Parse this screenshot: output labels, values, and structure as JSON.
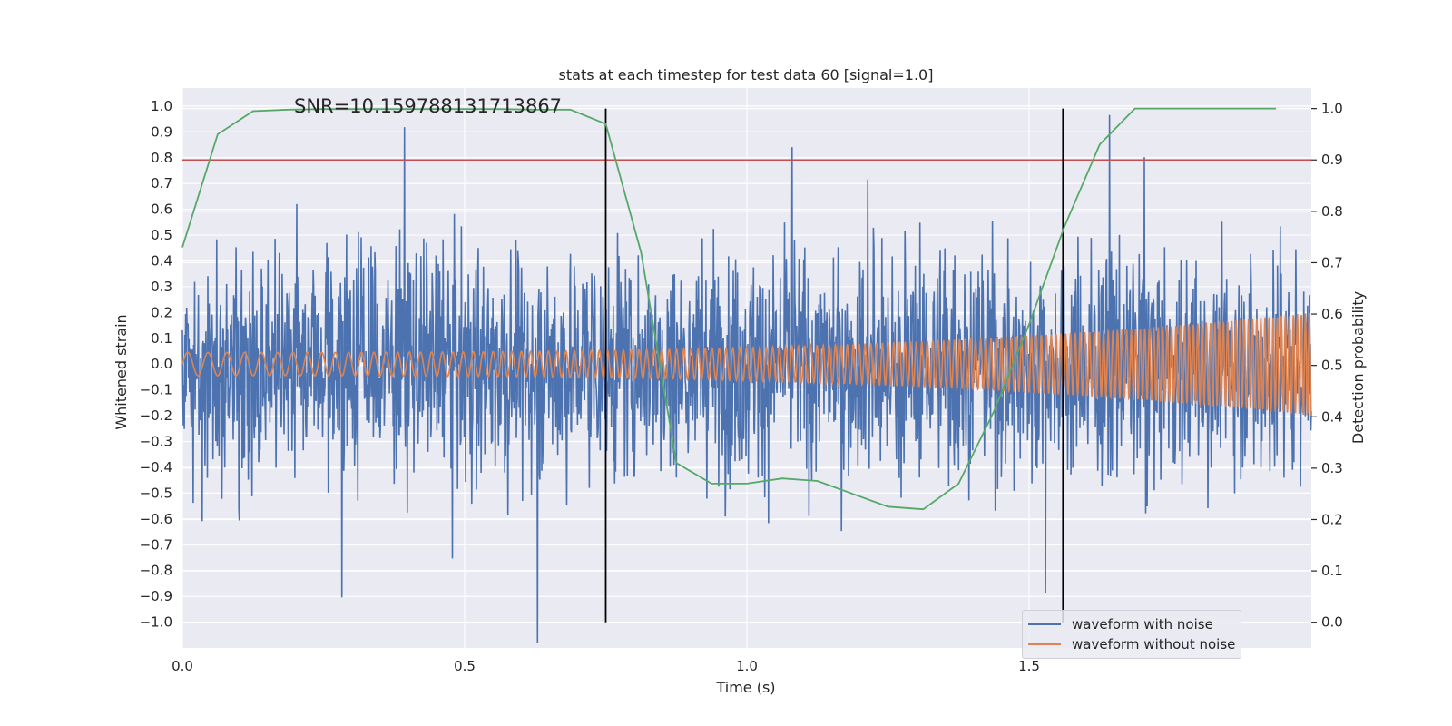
{
  "chart_data": {
    "type": "line",
    "title": "stats at each timestep for test data 60 [signal=1.0]",
    "annotation": "SNR=10.159788131713867",
    "xlabel": "Time (s)",
    "ylabel": "Whitened strain",
    "y2label": "Detection probability",
    "xlim": [
      0.0,
      2.0
    ],
    "ylim": [
      -1.1,
      1.07
    ],
    "y2lim": [
      -0.05,
      1.04
    ],
    "xticks": [
      0.0,
      0.5,
      1.0,
      1.5
    ],
    "xtick_labels": [
      "0.0",
      "0.5",
      "1.0",
      "1.5"
    ],
    "yticks": [
      1.0,
      0.9,
      0.8,
      0.7,
      0.6,
      0.5,
      0.4,
      0.3,
      0.2,
      0.1,
      0.0,
      -0.1,
      -0.2,
      -0.3,
      -0.4,
      -0.5,
      -0.6,
      -0.7,
      -0.8,
      -0.9,
      -1.0
    ],
    "ytick_labels": [
      "1.0",
      "0.9",
      "0.8",
      "0.7",
      "0.6",
      "0.5",
      "0.4",
      "0.3",
      "0.2",
      "0.1",
      "0.0",
      "−0.1",
      "−0.2",
      "−0.3",
      "−0.4",
      "−0.5",
      "−0.6",
      "−0.7",
      "−0.8",
      "−0.9",
      "−1.0"
    ],
    "y2ticks": [
      1.0,
      0.9,
      0.8,
      0.7,
      0.6,
      0.5,
      0.4,
      0.3,
      0.2,
      0.1,
      0.0
    ],
    "y2tick_labels": [
      "1.0",
      "0.9",
      "0.8",
      "0.7",
      "0.6",
      "0.5",
      "0.4",
      "0.3",
      "0.2",
      "0.1",
      "0.0"
    ],
    "threshold": {
      "value": 0.9,
      "axis": "y2",
      "color": "#c44e52"
    },
    "vertical_lines": [
      {
        "x": 0.75,
        "color": "#000000"
      },
      {
        "x": 1.56,
        "color": "#000000"
      }
    ],
    "series": [
      {
        "name": "waveform with noise",
        "color": "#4c72b0",
        "kind": "noise",
        "amplitude": 0.35,
        "duration": 2.0
      },
      {
        "name": "waveform without noise",
        "color": "#dd8452",
        "kind": "chirp",
        "duration": 2.0,
        "amplitude_start": 0.045,
        "amplitude_end": 0.2,
        "cycles": 150
      },
      {
        "name": "Detection probability",
        "color": "#55a868",
        "axis": "y2",
        "x": [
          0.0,
          0.0625,
          0.125,
          0.1875,
          0.25,
          0.3125,
          0.375,
          0.4375,
          0.5,
          0.5625,
          0.625,
          0.6875,
          0.75,
          0.8125,
          0.875,
          0.9375,
          1.0,
          1.0625,
          1.125,
          1.1875,
          1.25,
          1.3125,
          1.375,
          1.4375,
          1.5,
          1.5625,
          1.625,
          1.6875,
          1.75,
          1.8125,
          1.875,
          1.9375
        ],
        "values": [
          0.73,
          0.95,
          0.995,
          0.998,
          0.999,
          0.999,
          0.999,
          0.999,
          0.999,
          0.999,
          0.998,
          0.998,
          0.97,
          0.72,
          0.31,
          0.27,
          0.27,
          0.28,
          0.275,
          0.25,
          0.225,
          0.22,
          0.27,
          0.41,
          0.58,
          0.77,
          0.93,
          1.0,
          1.0,
          1.0,
          1.0,
          1.0
        ]
      }
    ],
    "legend_position": "lower right",
    "grid": true
  }
}
